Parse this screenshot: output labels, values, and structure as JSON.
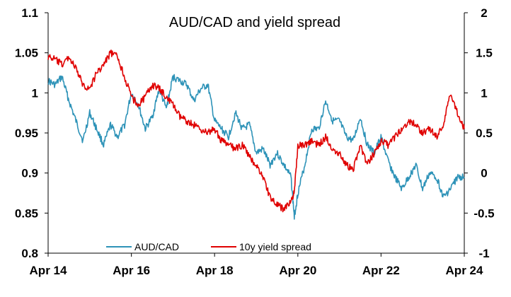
{
  "chart_data": {
    "type": "line",
    "title": "AUD/CAD and yield spread",
    "xlabel": "",
    "ylabel": "",
    "x_ticks": [
      "Apr 14",
      "Apr 16",
      "Apr 18",
      "Apr 20",
      "Apr 22",
      "Apr 24"
    ],
    "y_left": {
      "lim": [
        0.8,
        1.1
      ],
      "ticks": [
        "0.8",
        "0.85",
        "0.9",
        "0.95",
        "1",
        "1.05",
        "1.1"
      ]
    },
    "y_right": {
      "lim": [
        -1,
        2
      ],
      "ticks": [
        "-1",
        "-0.5",
        "0",
        "0.5",
        "1",
        "1.5",
        "2"
      ]
    },
    "legend_position": "bottom",
    "grid": false,
    "series": [
      {
        "name": "AUD/CAD",
        "axis": "left",
        "color": "#2E93B8",
        "x": [
          "2014-04",
          "2014-06",
          "2014-08",
          "2014-10",
          "2014-12",
          "2015-02",
          "2015-04",
          "2015-06",
          "2015-08",
          "2015-10",
          "2015-12",
          "2016-02",
          "2016-04",
          "2016-06",
          "2016-08",
          "2016-10",
          "2016-12",
          "2017-02",
          "2017-04",
          "2017-06",
          "2017-08",
          "2017-10",
          "2017-12",
          "2018-02",
          "2018-04",
          "2018-06",
          "2018-08",
          "2018-10",
          "2018-12",
          "2019-02",
          "2019-04",
          "2019-06",
          "2019-08",
          "2019-10",
          "2019-12",
          "2020-02",
          "2020-03",
          "2020-04",
          "2020-06",
          "2020-08",
          "2020-10",
          "2020-12",
          "2021-02",
          "2021-04",
          "2021-06",
          "2021-08",
          "2021-10",
          "2021-12",
          "2022-02",
          "2022-04",
          "2022-06",
          "2022-08",
          "2022-10",
          "2022-12",
          "2023-02",
          "2023-04",
          "2023-06",
          "2023-08",
          "2023-10",
          "2023-12",
          "2024-02",
          "2024-04"
        ],
        "values": [
          1.015,
          1.01,
          1.02,
          0.99,
          0.965,
          0.94,
          0.975,
          0.955,
          0.935,
          0.96,
          0.945,
          0.96,
          1.0,
          0.985,
          0.955,
          0.97,
          1.005,
          0.98,
          1.02,
          1.015,
          1.01,
          0.99,
          1.005,
          1.01,
          0.965,
          0.955,
          0.945,
          0.975,
          0.955,
          0.96,
          0.925,
          0.93,
          0.91,
          0.925,
          0.91,
          0.895,
          0.845,
          0.875,
          0.91,
          0.955,
          0.955,
          0.99,
          0.965,
          0.965,
          0.945,
          0.94,
          0.97,
          0.935,
          0.925,
          0.945,
          0.915,
          0.895,
          0.88,
          0.895,
          0.91,
          0.88,
          0.9,
          0.895,
          0.87,
          0.88,
          0.895,
          0.895
        ]
      },
      {
        "name": "10y yield spread",
        "axis": "right",
        "color": "#E00000",
        "x": [
          "2014-04",
          "2014-06",
          "2014-08",
          "2014-10",
          "2014-12",
          "2015-02",
          "2015-04",
          "2015-06",
          "2015-08",
          "2015-10",
          "2015-12",
          "2016-02",
          "2016-04",
          "2016-06",
          "2016-08",
          "2016-10",
          "2016-12",
          "2017-02",
          "2017-04",
          "2017-06",
          "2017-08",
          "2017-10",
          "2017-12",
          "2018-02",
          "2018-04",
          "2018-06",
          "2018-08",
          "2018-10",
          "2018-12",
          "2019-02",
          "2019-04",
          "2019-06",
          "2019-08",
          "2019-10",
          "2019-12",
          "2020-02",
          "2020-03",
          "2020-04",
          "2020-06",
          "2020-08",
          "2020-10",
          "2020-12",
          "2021-02",
          "2021-04",
          "2021-06",
          "2021-08",
          "2021-10",
          "2021-12",
          "2022-02",
          "2022-04",
          "2022-06",
          "2022-08",
          "2022-10",
          "2022-12",
          "2023-02",
          "2023-04",
          "2023-06",
          "2023-08",
          "2023-10",
          "2023-12",
          "2024-02",
          "2024-04"
        ],
        "values": [
          1.45,
          1.42,
          1.35,
          1.45,
          1.3,
          1.1,
          1.05,
          1.25,
          1.35,
          1.5,
          1.45,
          1.2,
          0.95,
          0.85,
          0.95,
          1.1,
          1.05,
          0.95,
          0.85,
          0.7,
          0.65,
          0.6,
          0.55,
          0.5,
          0.55,
          0.4,
          0.35,
          0.3,
          0.35,
          0.2,
          0.1,
          -0.05,
          -0.3,
          -0.4,
          -0.45,
          -0.35,
          -0.25,
          0.35,
          0.35,
          0.4,
          0.35,
          0.45,
          0.3,
          0.25,
          0.1,
          0.05,
          0.35,
          0.1,
          0.25,
          0.4,
          0.35,
          0.45,
          0.55,
          0.65,
          0.6,
          0.5,
          0.55,
          0.45,
          0.6,
          1.0,
          0.75,
          0.55
        ]
      }
    ]
  }
}
